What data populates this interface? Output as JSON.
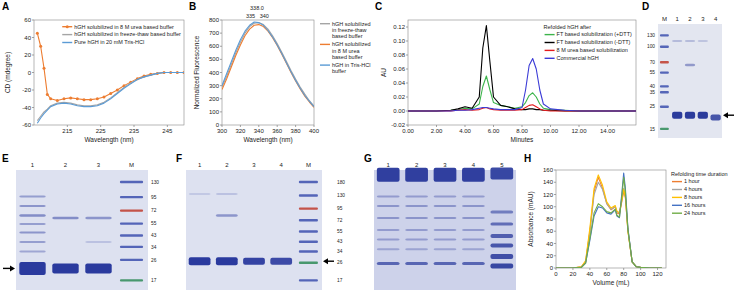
{
  "chart_data": [
    {
      "panel": "A",
      "type": "line",
      "xlabel": "Wavelength (nm)",
      "ylabel": "CD (mdegree)",
      "x": [
        206,
        207,
        208,
        209,
        210,
        212,
        214,
        216,
        218,
        220,
        222,
        224,
        226,
        228,
        230,
        232,
        234,
        236,
        238,
        240,
        242,
        244,
        246,
        248,
        250
      ],
      "xlim": [
        205,
        250
      ],
      "ylim": [
        -60,
        60
      ],
      "xticks": [
        215,
        225,
        235,
        245
      ],
      "yticks": [
        -60,
        -40,
        -20,
        0,
        20,
        40,
        60
      ],
      "grid": false,
      "legend": "upper right",
      "series": [
        {
          "name": "hGH solubilized in 8 M urea based buffer",
          "color": "#ed7d31",
          "marker": "circle",
          "values": [
            45,
            30,
            5,
            -25,
            -30,
            -32,
            -30,
            -29,
            -30,
            -31,
            -31,
            -30,
            -28,
            -24,
            -20,
            -15,
            -11,
            -7,
            -4,
            -2,
            -1,
            0,
            0,
            0,
            0
          ]
        },
        {
          "name": "hGH solubilized in freeze-thaw based buffer",
          "color": "#a5a5a5",
          "values": [
            -55,
            -50,
            -45,
            -42,
            -38,
            -35,
            -34,
            -35,
            -37,
            -38,
            -38,
            -37,
            -34,
            -29,
            -23,
            -17,
            -12,
            -8,
            -5,
            -3,
            -1,
            0,
            0,
            0,
            0
          ]
        },
        {
          "name": "Pure hGH in 20 mM Tris-HCl",
          "color": "#5b9bd5",
          "values": [
            -58,
            -52,
            -47,
            -43,
            -39,
            -36,
            -35,
            -36,
            -38,
            -39,
            -39,
            -38,
            -35,
            -30,
            -24,
            -18,
            -13,
            -8,
            -5,
            -3,
            -1,
            0,
            0,
            0,
            0
          ]
        }
      ]
    },
    {
      "panel": "B",
      "type": "line",
      "xlabel": "Wavelength (nm)",
      "ylabel": "Normalized Fluorescence",
      "x": [
        300,
        305,
        310,
        315,
        320,
        325,
        330,
        335,
        340,
        345,
        350,
        355,
        360,
        365,
        370,
        375,
        380,
        385,
        390,
        395,
        400
      ],
      "xlim": [
        300,
        400
      ],
      "ylim": [
        0,
        800
      ],
      "xticks": [
        300,
        320,
        340,
        360,
        380,
        400
      ],
      "yticks": [
        0,
        100,
        200,
        300,
        400,
        500,
        600,
        700,
        800
      ],
      "grid": false,
      "legend": "right",
      "series": [
        {
          "name": "hGH solubilized in freeze-thaw based buffer",
          "color": "#a5a5a5",
          "values": [
            290,
            370,
            460,
            550,
            630,
            700,
            750,
            775,
            780,
            765,
            730,
            680,
            620,
            555,
            485,
            415,
            350,
            290,
            235,
            185,
            145
          ]
        },
        {
          "name": "hGH solubilized in 8 M urea based buffer",
          "color": "#ed7d31",
          "values": [
            270,
            350,
            440,
            530,
            610,
            680,
            730,
            760,
            765,
            750,
            715,
            665,
            605,
            540,
            470,
            400,
            335,
            275,
            220,
            175,
            135
          ]
        },
        {
          "name": "hGH in Tris-HCl buffer",
          "color": "#5b9bd5",
          "values": [
            300,
            390,
            480,
            570,
            650,
            715,
            760,
            785,
            780,
            760,
            720,
            670,
            610,
            545,
            475,
            405,
            340,
            280,
            225,
            180,
            140
          ]
        }
      ],
      "annotations": [
        {
          "text": "335",
          "x": 331,
          "y": 800
        },
        {
          "text": "340",
          "x": 346,
          "y": 800
        },
        {
          "text": "338.0",
          "x": 338,
          "y": 860
        }
      ]
    },
    {
      "panel": "C",
      "type": "line",
      "xlabel": "Minutes",
      "ylabel": "AU",
      "x": [
        0,
        1,
        2,
        3,
        3.5,
        4,
        4.5,
        5,
        5.25,
        5.5,
        5.75,
        6,
        6.5,
        7,
        7.5,
        8,
        8.25,
        8.5,
        8.75,
        9,
        9.25,
        9.5,
        10,
        11,
        12,
        13,
        14,
        15,
        16
      ],
      "xlim": [
        0,
        16
      ],
      "ylim": [
        -0.02,
        0.13
      ],
      "xticks": [
        {
          "value": 0,
          "label": "0.00"
        },
        {
          "value": 2,
          "label": "2.00"
        },
        {
          "value": 4,
          "label": "4.00"
        },
        {
          "value": 6,
          "label": "6.00"
        },
        {
          "value": 8,
          "label": "8.00"
        },
        {
          "value": 10,
          "label": "10.00"
        },
        {
          "value": 12,
          "label": "12.00"
        },
        {
          "value": 14,
          "label": "14.00"
        }
      ],
      "yticks": [
        {
          "value": -0.02,
          "label": "-0.02"
        },
        {
          "value": 0,
          "label": "0.00"
        },
        {
          "value": 0.02,
          "label": "0.02"
        },
        {
          "value": 0.04,
          "label": "0.04"
        },
        {
          "value": 0.06,
          "label": "0.06"
        },
        {
          "value": 0.08,
          "label": "0.08"
        },
        {
          "value": 0.1,
          "label": "0.10"
        },
        {
          "value": 0.12,
          "label": "0.12"
        }
      ],
      "grid": false,
      "legend": "upper right",
      "legend_title": "Refolded hGH after",
      "series": [
        {
          "name": "FT based solubilization (+DTT)",
          "color": "#3cb44b",
          "values": [
            0,
            0,
            0,
            0.001,
            0.002,
            0.004,
            0.003,
            0.01,
            0.035,
            0.05,
            0.03,
            0.012,
            0.008,
            0.006,
            0.004,
            0.006,
            0.012,
            0.022,
            0.026,
            0.02,
            0.01,
            0.004,
            0.002,
            0.001,
            0,
            0,
            0,
            0,
            0
          ]
        },
        {
          "name": "FT based solubilization (-DTT)",
          "color": "#000000",
          "values": [
            0,
            0,
            0,
            0.001,
            0.003,
            0.006,
            0.004,
            0.02,
            0.09,
            0.122,
            0.07,
            0.02,
            0.008,
            0.006,
            0.003,
            0.002,
            0.002,
            0.003,
            0.003,
            0.002,
            0.002,
            0.001,
            0.001,
            0,
            0,
            0,
            0,
            0,
            0
          ]
        },
        {
          "name": "8 M urea based solubilization",
          "color": "#e41a1c",
          "values": [
            0,
            0,
            0,
            0,
            0.001,
            0.002,
            0.001,
            0.002,
            0.004,
            0.005,
            0.003,
            0.002,
            0.001,
            0.001,
            0.001,
            0.002,
            0.005,
            0.008,
            0.009,
            0.006,
            0.003,
            0.001,
            0,
            0,
            0,
            0,
            0,
            0,
            0
          ]
        },
        {
          "name": "Commercial hGH",
          "color": "#3b3bd6",
          "values": [
            0,
            0,
            0,
            0,
            0.001,
            0.001,
            0.002,
            0.004,
            0.005,
            0.005,
            0.004,
            0.003,
            0.002,
            0.002,
            0.002,
            0.005,
            0.03,
            0.065,
            0.075,
            0.06,
            0.03,
            0.01,
            0.003,
            0.001,
            0,
            0,
            0,
            0,
            0
          ]
        }
      ]
    },
    {
      "panel": "H",
      "type": "line",
      "xlabel": "Volume (mL)",
      "ylabel": "Absorbance (mAU)",
      "x": [
        0,
        20,
        30,
        35,
        40,
        45,
        50,
        55,
        60,
        65,
        70,
        72,
        75,
        78,
        80,
        82,
        85,
        90,
        95,
        100,
        110,
        120,
        125
      ],
      "xlim": [
        0,
        130
      ],
      "ylim": [
        0,
        160
      ],
      "xticks": [
        0,
        20,
        40,
        60,
        80,
        100,
        120
      ],
      "yticks": [
        0,
        20,
        40,
        60,
        80,
        100,
        120,
        140,
        160
      ],
      "grid": false,
      "legend": "right",
      "legend_title": "Refolding time duration",
      "series": [
        {
          "name": "1 hour",
          "color": "#ed7d31",
          "values": [
            0,
            0,
            2,
            10,
            60,
            125,
            148,
            130,
            105,
            95,
            100,
            90,
            88,
            110,
            125,
            115,
            60,
            10,
            2,
            1,
            0,
            0,
            0
          ]
        },
        {
          "name": "4 hours",
          "color": "#a5a5a5",
          "values": [
            0,
            0,
            2,
            10,
            58,
            120,
            140,
            128,
            105,
            96,
            100,
            92,
            90,
            115,
            130,
            118,
            62,
            10,
            2,
            1,
            0,
            0,
            0
          ]
        },
        {
          "name": "8 hours",
          "color": "#ffc000",
          "values": [
            0,
            0,
            2,
            12,
            65,
            130,
            152,
            135,
            108,
            98,
            102,
            93,
            90,
            112,
            128,
            116,
            60,
            10,
            2,
            1,
            0,
            0,
            0
          ]
        },
        {
          "name": "16 hours",
          "color": "#4472c4",
          "values": [
            0,
            0,
            1,
            8,
            45,
            85,
            100,
            98,
            90,
            88,
            95,
            85,
            82,
            125,
            155,
            130,
            65,
            10,
            2,
            1,
            0,
            0,
            0
          ]
        },
        {
          "name": "24 hours",
          "color": "#70ad47",
          "values": [
            0,
            0,
            1,
            8,
            48,
            90,
            105,
            100,
            92,
            90,
            96,
            86,
            83,
            120,
            148,
            125,
            63,
            10,
            2,
            1,
            0,
            0,
            0
          ]
        }
      ]
    }
  ],
  "gels": [
    {
      "panel": "D",
      "lanes": [
        "M",
        "1",
        "2",
        "3",
        "4"
      ],
      "markers": [
        130,
        100,
        70,
        55,
        40,
        35,
        25,
        15
      ]
    },
    {
      "panel": "E",
      "lanes": [
        "1",
        "2",
        "3",
        "M"
      ],
      "markers": [
        130,
        95,
        72,
        55,
        43,
        34,
        26,
        17
      ]
    },
    {
      "panel": "F",
      "lanes": [
        "1",
        "2",
        "3",
        "4",
        "M"
      ],
      "markers": [
        180,
        130,
        95,
        72,
        55,
        43,
        34,
        26,
        17
      ]
    },
    {
      "panel": "G",
      "lanes": [
        "1",
        "2",
        "3",
        "4",
        "5"
      ]
    }
  ]
}
